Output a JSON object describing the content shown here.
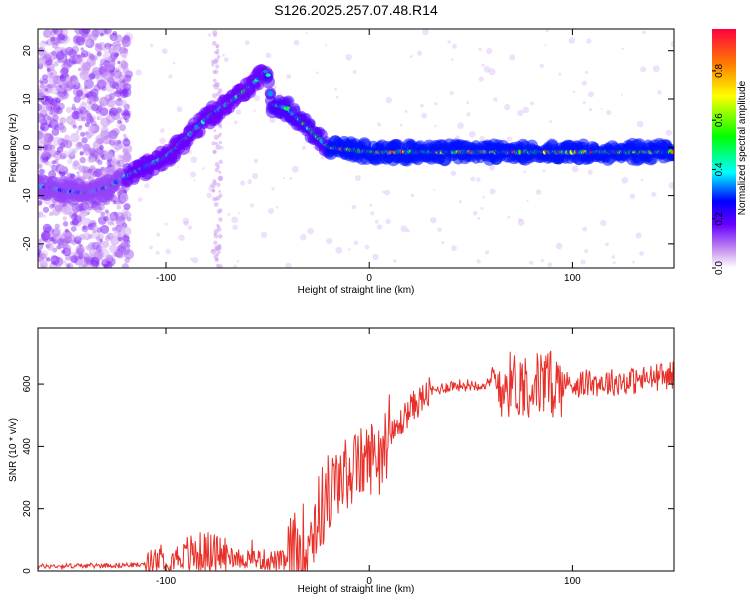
{
  "title": "S126.2025.257.07.48.R14",
  "chart_data": [
    {
      "type": "heatmap",
      "xlabel": "Height of straight line (km)",
      "ylabel": "Frequency (Hz)",
      "xlim": [
        -163,
        150
      ],
      "ylim": [
        -25,
        24.5
      ],
      "xticks": [
        -100,
        0,
        100
      ],
      "yticks": [
        -20,
        -10,
        0,
        10,
        20
      ],
      "colorbar": {
        "label": "Normalized spectral amplitude",
        "range": [
          0,
          0.97
        ],
        "ticks": [
          0.0,
          0.2,
          0.4,
          0.6,
          0.8
        ]
      },
      "ridge": [
        {
          "x": -163,
          "y": -8
        },
        {
          "x": -150,
          "y": -9
        },
        {
          "x": -140,
          "y": -9.5
        },
        {
          "x": -130,
          "y": -8.5
        },
        {
          "x": -120,
          "y": -6
        },
        {
          "x": -110,
          "y": -4
        },
        {
          "x": -100,
          "y": -2
        },
        {
          "x": -90,
          "y": 2
        },
        {
          "x": -80,
          "y": 6
        },
        {
          "x": -70,
          "y": 9
        },
        {
          "x": -60,
          "y": 12
        },
        {
          "x": -50,
          "y": 16
        },
        {
          "x": -48,
          "y": 9
        },
        {
          "x": -40,
          "y": 8
        },
        {
          "x": -30,
          "y": 4
        },
        {
          "x": -20,
          "y": 0
        },
        {
          "x": -10,
          "y": -0.5
        },
        {
          "x": 0,
          "y": -1
        },
        {
          "x": 20,
          "y": -1
        },
        {
          "x": 60,
          "y": -1
        },
        {
          "x": 100,
          "y": -1
        },
        {
          "x": 150,
          "y": -1
        }
      ]
    },
    {
      "type": "line",
      "xlabel": "Height of straight line (km)",
      "ylabel": "SNR (10 * v/v)",
      "xlim": [
        -163,
        150
      ],
      "ylim": [
        0,
        780
      ],
      "xticks": [
        -100,
        0,
        100
      ],
      "yticks": [
        0,
        200,
        400,
        600
      ],
      "color": "#e8302a",
      "trend": [
        {
          "x": -163,
          "y": 15
        },
        {
          "x": -130,
          "y": 18
        },
        {
          "x": -110,
          "y": 20
        },
        {
          "x": -100,
          "y": 40
        },
        {
          "x": -80,
          "y": 60
        },
        {
          "x": -60,
          "y": 40
        },
        {
          "x": -40,
          "y": 30
        },
        {
          "x": -30,
          "y": 100
        },
        {
          "x": -20,
          "y": 250
        },
        {
          "x": -10,
          "y": 320
        },
        {
          "x": 0,
          "y": 360
        },
        {
          "x": 10,
          "y": 420
        },
        {
          "x": 20,
          "y": 520
        },
        {
          "x": 30,
          "y": 575
        },
        {
          "x": 40,
          "y": 595
        },
        {
          "x": 60,
          "y": 600
        },
        {
          "x": 80,
          "y": 600
        },
        {
          "x": 100,
          "y": 600
        },
        {
          "x": 130,
          "y": 610
        },
        {
          "x": 150,
          "y": 630
        }
      ],
      "noise_zones": [
        {
          "x0": -163,
          "x1": -110,
          "amp": 8
        },
        {
          "x0": -110,
          "x1": -90,
          "amp": 45
        },
        {
          "x0": -90,
          "x1": -70,
          "amp": 70
        },
        {
          "x0": -70,
          "x1": -40,
          "amp": 35
        },
        {
          "x0": -40,
          "x1": -18,
          "amp": 140
        },
        {
          "x0": -18,
          "x1": 10,
          "amp": 120
        },
        {
          "x0": 10,
          "x1": 30,
          "amp": 50
        },
        {
          "x0": 30,
          "x1": 60,
          "amp": 20
        },
        {
          "x0": 60,
          "x1": 95,
          "amp": 110
        },
        {
          "x0": 95,
          "x1": 150,
          "amp": 45
        }
      ]
    }
  ]
}
